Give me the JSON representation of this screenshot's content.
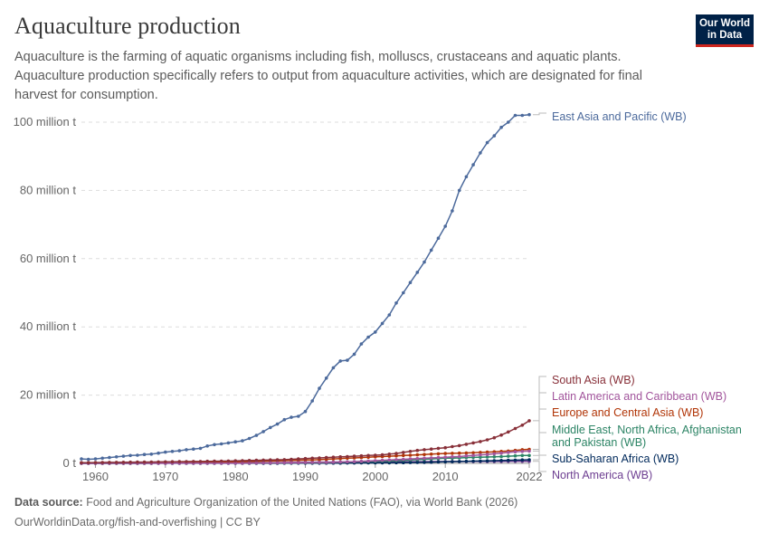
{
  "header": {
    "title": "Aquaculture production",
    "subtitle": "Aquaculture is the farming of aquatic organisms including fish, molluscs, crustaceans and aquatic plants. Aquaculture production specifically refers to output from aquaculture activities, which are designated for final harvest for consumption.",
    "logo_line1": "Our World",
    "logo_line2": "in Data"
  },
  "footer": {
    "source_label": "Data source:",
    "source_text": "Food and Agriculture Organization of the United Nations (FAO), via World Bank (2026)",
    "url_text": "OurWorldinData.org/fish-and-overfishing | CC BY"
  },
  "colors": {
    "East Asia and Pacific (WB)": "#4c6a9c",
    "South Asia (WB)": "#883039",
    "Latin America and Caribbean (WB)": "#a2559c",
    "Europe and Central Asia (WB)": "#b13507",
    "Middle East, North Africa, Afghanistan and Pakistan (WB)": "#2c8465",
    "Sub-Saharan Africa (WB)": "#00295b",
    "North America (WB)": "#6d3e91"
  },
  "chart_data": {
    "type": "line",
    "title": "Aquaculture production",
    "xlabel": "",
    "ylabel": "",
    "xlim": [
      1958,
      2022
    ],
    "ylim": [
      0,
      100000000
    ],
    "y_ticks": [
      {
        "value": 0,
        "label": "0 t"
      },
      {
        "value": 20000000,
        "label": "20 million t"
      },
      {
        "value": 40000000,
        "label": "40 million t"
      },
      {
        "value": 60000000,
        "label": "60 million t"
      },
      {
        "value": 80000000,
        "label": "80 million t"
      },
      {
        "value": 100000000,
        "label": "100 million t"
      }
    ],
    "x_ticks": [
      "1960",
      "1970",
      "1980",
      "1990",
      "2000",
      "2010",
      "2022"
    ],
    "grid": "horizontal dashed",
    "legend": "end-of-line labels, right",
    "x": [
      1958,
      1959,
      1960,
      1961,
      1962,
      1963,
      1964,
      1965,
      1966,
      1967,
      1968,
      1969,
      1970,
      1971,
      1972,
      1973,
      1974,
      1975,
      1976,
      1977,
      1978,
      1979,
      1980,
      1981,
      1982,
      1983,
      1984,
      1985,
      1986,
      1987,
      1988,
      1989,
      1990,
      1991,
      1992,
      1993,
      1994,
      1995,
      1996,
      1997,
      1998,
      1999,
      2000,
      2001,
      2002,
      2003,
      2004,
      2005,
      2006,
      2007,
      2008,
      2009,
      2010,
      2011,
      2012,
      2013,
      2014,
      2015,
      2016,
      2017,
      2018,
      2019,
      2020,
      2021,
      2022
    ],
    "series": [
      {
        "name": "East Asia and Pacific (WB)",
        "values": [
          1300000,
          1200000,
          1300000,
          1500000,
          1700000,
          1900000,
          2100000,
          2300000,
          2400000,
          2600000,
          2700000,
          3000000,
          3300000,
          3500000,
          3700000,
          4000000,
          4200000,
          4400000,
          5100000,
          5500000,
          5700000,
          6000000,
          6300000,
          6600000,
          7300000,
          8200000,
          9300000,
          10500000,
          11500000,
          12800000,
          13500000,
          13800000,
          15200000,
          18300000,
          22000000,
          25000000,
          28000000,
          30000000,
          30200000,
          32000000,
          35000000,
          37000000,
          38500000,
          41000000,
          43500000,
          47000000,
          50000000,
          53000000,
          56000000,
          59000000,
          62500000,
          66000000,
          69500000,
          74000000,
          80000000,
          84000000,
          87500000,
          91000000,
          94000000,
          96000000,
          98500000,
          100000000,
          102000000,
          102000000,
          102200000
        ]
      },
      {
        "name": "South Asia (WB)",
        "values": [
          200000,
          220000,
          240000,
          260000,
          280000,
          300000,
          320000,
          340000,
          360000,
          380000,
          400000,
          420000,
          450000,
          470000,
          500000,
          520000,
          550000,
          570000,
          600000,
          630000,
          660000,
          700000,
          750000,
          800000,
          850000,
          900000,
          950000,
          1000000,
          1050000,
          1100000,
          1200000,
          1300000,
          1400000,
          1500000,
          1600000,
          1700000,
          1800000,
          1900000,
          2000000,
          2100000,
          2200000,
          2300000,
          2400000,
          2500000,
          2700000,
          2900000,
          3200000,
          3500000,
          3800000,
          4000000,
          4200000,
          4400000,
          4600000,
          4900000,
          5200000,
          5600000,
          6000000,
          6400000,
          6900000,
          7500000,
          8300000,
          9200000,
          10200000,
          11200000,
          12500000
        ]
      },
      {
        "name": "Latin America and Caribbean (WB)",
        "values": [
          10000,
          10000,
          12000,
          14000,
          16000,
          18000,
          20000,
          22000,
          25000,
          28000,
          30000,
          33000,
          36000,
          40000,
          44000,
          48000,
          52000,
          56000,
          60000,
          65000,
          70000,
          75000,
          80000,
          90000,
          100000,
          110000,
          120000,
          140000,
          160000,
          180000,
          200000,
          220000,
          240000,
          260000,
          280000,
          300000,
          350000,
          400000,
          450000,
          500000,
          600000,
          700000,
          800000,
          900000,
          1000000,
          1100000,
          1200000,
          1300000,
          1400000,
          1500000,
          1600000,
          1700000,
          1800000,
          1900000,
          2000000,
          2200000,
          2300000,
          2500000,
          2600000,
          2800000,
          3000000,
          3200000,
          3400000,
          3500000,
          3600000
        ]
      },
      {
        "name": "Europe and Central Asia (WB)",
        "values": [
          150000,
          160000,
          170000,
          180000,
          190000,
          200000,
          210000,
          220000,
          230000,
          240000,
          250000,
          260000,
          280000,
          300000,
          320000,
          340000,
          360000,
          380000,
          400000,
          420000,
          440000,
          460000,
          480000,
          500000,
          550000,
          600000,
          650000,
          700000,
          750000,
          800000,
          850000,
          900000,
          950000,
          1000000,
          1100000,
          1200000,
          1300000,
          1400000,
          1500000,
          1600000,
          1700000,
          1800000,
          1900000,
          2000000,
          2100000,
          2200000,
          2300000,
          2400000,
          2500000,
          2600000,
          2700000,
          2800000,
          2900000,
          2950000,
          3000000,
          3050000,
          3100000,
          3200000,
          3300000,
          3400000,
          3500000,
          3600000,
          3800000,
          4000000,
          4100000
        ]
      },
      {
        "name": "Middle East, North Africa, Afghanistan and Pakistan (WB)",
        "values": [
          20000,
          20000,
          22000,
          24000,
          26000,
          28000,
          30000,
          32000,
          34000,
          36000,
          38000,
          40000,
          42000,
          44000,
          46000,
          48000,
          50000,
          55000,
          60000,
          65000,
          70000,
          75000,
          80000,
          90000,
          100000,
          110000,
          120000,
          130000,
          140000,
          150000,
          160000,
          170000,
          180000,
          190000,
          200000,
          250000,
          300000,
          350000,
          400000,
          450000,
          500000,
          550000,
          600000,
          650000,
          700000,
          800000,
          900000,
          1000000,
          1100000,
          1200000,
          1300000,
          1400000,
          1500000,
          1550000,
          1600000,
          1700000,
          1750000,
          1800000,
          1850000,
          1900000,
          2000000,
          2100000,
          2200000,
          2300000,
          2300000
        ]
      },
      {
        "name": "Sub-Saharan Africa (WB)",
        "values": [
          5000,
          5000,
          6000,
          7000,
          8000,
          9000,
          10000,
          11000,
          12000,
          13000,
          14000,
          15000,
          16000,
          17000,
          18000,
          19000,
          20000,
          21000,
          22000,
          23000,
          24000,
          25000,
          26000,
          28000,
          30000,
          32000,
          34000,
          36000,
          38000,
          40000,
          45000,
          50000,
          55000,
          60000,
          65000,
          70000,
          80000,
          90000,
          100000,
          110000,
          120000,
          130000,
          140000,
          150000,
          170000,
          190000,
          210000,
          240000,
          270000,
          300000,
          350000,
          400000,
          450000,
          500000,
          550000,
          600000,
          650000,
          700000,
          750000,
          800000,
          850000,
          900000,
          950000,
          1000000,
          1050000
        ]
      },
      {
        "name": "North America (WB)",
        "values": [
          50000,
          52000,
          54000,
          56000,
          58000,
          60000,
          62000,
          64000,
          66000,
          68000,
          70000,
          72000,
          75000,
          80000,
          85000,
          90000,
          95000,
          100000,
          110000,
          120000,
          130000,
          140000,
          150000,
          160000,
          170000,
          180000,
          200000,
          220000,
          240000,
          260000,
          280000,
          300000,
          320000,
          340000,
          360000,
          380000,
          400000,
          410000,
          420000,
          430000,
          440000,
          450000,
          460000,
          470000,
          480000,
          490000,
          500000,
          505000,
          510000,
          515000,
          520000,
          525000,
          530000,
          535000,
          540000,
          545000,
          550000,
          555000,
          560000,
          565000,
          570000,
          575000,
          580000,
          585000,
          590000
        ]
      }
    ],
    "label_order": [
      "East Asia and Pacific (WB)",
      "South Asia (WB)",
      "Latin America and Caribbean (WB)",
      "Europe and Central Asia (WB)",
      "Middle East, North Africa, Afghanistan and Pakistan (WB)",
      "Sub-Saharan Africa (WB)",
      "North America (WB)"
    ]
  }
}
